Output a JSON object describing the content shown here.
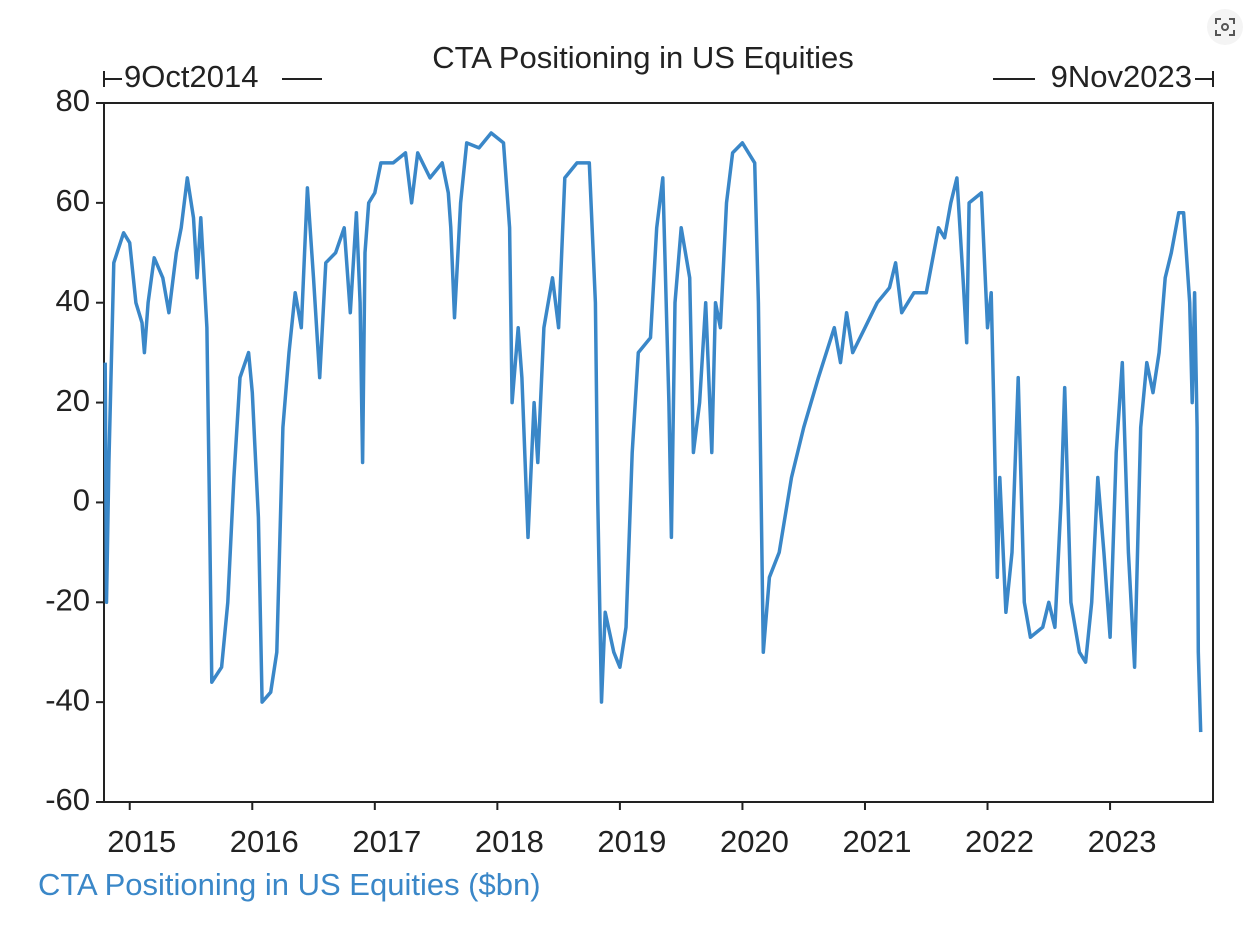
{
  "chart_data": {
    "type": "line",
    "title": "CTA Positioning in US Equities",
    "annotations": [
      "9Oct2014",
      "9Nov2023"
    ],
    "xlim": [
      2014.79,
      2023.84
    ],
    "xticks": [
      2015,
      2016,
      2017,
      2018,
      2019,
      2020,
      2021,
      2022,
      2023
    ],
    "ylim": [
      -60,
      80
    ],
    "yticks": [
      -60,
      -40,
      -20,
      0,
      20,
      40,
      60,
      80
    ],
    "x": [
      2014.8,
      2014.81,
      2014.83,
      2014.87,
      2014.95,
      2015.0,
      2015.05,
      2015.1,
      2015.12,
      2015.15,
      2015.2,
      2015.27,
      2015.32,
      2015.38,
      2015.42,
      2015.47,
      2015.52,
      2015.55,
      2015.58,
      2015.63,
      2015.65,
      2015.67,
      2015.75,
      2015.8,
      2015.85,
      2015.9,
      2015.97,
      2016.0,
      2016.02,
      2016.05,
      2016.08,
      2016.15,
      2016.2,
      2016.25,
      2016.3,
      2016.35,
      2016.4,
      2016.45,
      2016.5,
      2016.55,
      2016.6,
      2016.68,
      2016.75,
      2016.8,
      2016.85,
      2016.88,
      2016.9,
      2016.92,
      2016.95,
      2017.0,
      2017.05,
      2017.15,
      2017.25,
      2017.3,
      2017.35,
      2017.45,
      2017.55,
      2017.6,
      2017.62,
      2017.65,
      2017.7,
      2017.75,
      2017.85,
      2017.95,
      2018.05,
      2018.1,
      2018.12,
      2018.17,
      2018.2,
      2018.25,
      2018.3,
      2018.33,
      2018.38,
      2018.45,
      2018.5,
      2018.55,
      2018.65,
      2018.75,
      2018.8,
      2018.82,
      2018.85,
      2018.88,
      2018.95,
      2019.0,
      2019.05,
      2019.1,
      2019.15,
      2019.25,
      2019.3,
      2019.35,
      2019.4,
      2019.42,
      2019.45,
      2019.5,
      2019.57,
      2019.6,
      2019.65,
      2019.7,
      2019.75,
      2019.78,
      2019.82,
      2019.87,
      2019.92,
      2020.0,
      2020.1,
      2020.13,
      2020.17,
      2020.22,
      2020.3,
      2020.4,
      2020.5,
      2020.62,
      2020.75,
      2020.8,
      2020.85,
      2020.9,
      2021.0,
      2021.1,
      2021.2,
      2021.25,
      2021.3,
      2021.4,
      2021.5,
      2021.6,
      2021.65,
      2021.7,
      2021.75,
      2021.8,
      2021.83,
      2021.85,
      2021.95,
      2022.0,
      2022.03,
      2022.05,
      2022.08,
      2022.1,
      2022.15,
      2022.2,
      2022.25,
      2022.3,
      2022.35,
      2022.45,
      2022.5,
      2022.55,
      2022.6,
      2022.63,
      2022.68,
      2022.75,
      2022.8,
      2022.85,
      2022.9,
      2022.95,
      2023.0,
      2023.05,
      2023.1,
      2023.15,
      2023.2,
      2023.25,
      2023.3,
      2023.35,
      2023.4,
      2023.45,
      2023.5,
      2023.56,
      2023.6,
      2023.65,
      2023.67,
      2023.69,
      2023.71,
      2023.72,
      2023.74
    ],
    "series": [
      {
        "name": "CTA Positioning in US Equities ($bn)",
        "color": "#3a87c8",
        "values": [
          28,
          -20,
          8,
          48,
          54,
          52,
          40,
          36,
          30,
          40,
          49,
          45,
          38,
          50,
          55,
          65,
          57,
          45,
          57,
          35,
          0,
          -36,
          -33,
          -20,
          5,
          25,
          30,
          22,
          12,
          -3,
          -40,
          -38,
          -30,
          15,
          30,
          42,
          35,
          63,
          45,
          25,
          48,
          50,
          55,
          38,
          58,
          40,
          8,
          50,
          60,
          62,
          68,
          68,
          70,
          60,
          70,
          65,
          68,
          62,
          55,
          37,
          60,
          72,
          71,
          74,
          72,
          55,
          20,
          35,
          25,
          -7,
          20,
          8,
          35,
          45,
          35,
          65,
          68,
          68,
          40,
          0,
          -40,
          -22,
          -30,
          -33,
          -25,
          10,
          30,
          33,
          55,
          65,
          20,
          -7,
          40,
          55,
          45,
          10,
          20,
          40,
          10,
          40,
          35,
          60,
          70,
          72,
          68,
          40,
          -30,
          -15,
          -10,
          5,
          15,
          25,
          35,
          28,
          38,
          30,
          35,
          40,
          43,
          48,
          38,
          42,
          42,
          55,
          53,
          60,
          65,
          45,
          32,
          60,
          62,
          35,
          42,
          20,
          -15,
          5,
          -22,
          -10,
          25,
          -20,
          -27,
          -25,
          -20,
          -25,
          0,
          23,
          -20,
          -30,
          -32,
          -20,
          5,
          -10,
          -27,
          10,
          28,
          -10,
          -33,
          15,
          28,
          22,
          30,
          45,
          50,
          58,
          58,
          40,
          20,
          42,
          15,
          -30,
          -46
        ]
      }
    ]
  }
}
